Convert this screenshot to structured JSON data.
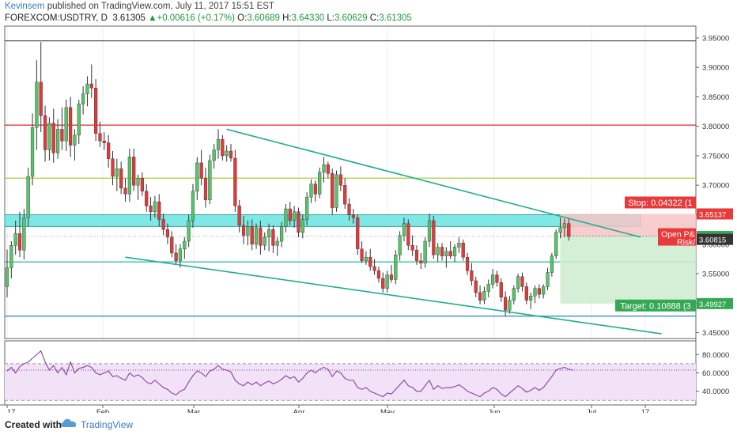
{
  "header": {
    "author": "Kevinsem",
    "published": " published on TradingView.com, July 11, 2017 15:51 EST",
    "symbol": "FOREXCOM:USDTRY, D",
    "last": "3.61305",
    "change": "+0.00616 (+0.17%)",
    "o_label": "O:",
    "o": "3.60689",
    "h_label": "H:",
    "h": "3.64330",
    "l_label": "L:",
    "l": "3.60629",
    "c_label": "C:",
    "c": "3.61305"
  },
  "footer": {
    "created": "Created with",
    "brand": "TradingView"
  },
  "colors": {
    "up": "#56c56a",
    "down": "#e03a3a",
    "wick": "#333333",
    "channel": "#1fae8f",
    "zone_fill": "#7fe7e6",
    "stop_fill": "#f7c4c4",
    "target_fill": "#cdeccf",
    "rsi": "#8b3fa3",
    "rsi_band": "#f1e2f7",
    "red_line": "#e03a3a",
    "green_line": "#a9cf39",
    "teal_line": "#2bbd98",
    "blue_line": "#3d8ec4"
  },
  "chart_data": {
    "type": "candlestick",
    "symbol": "FOREXCOM:USDTRY, D",
    "ylim": [
      3.44,
      3.97
    ],
    "y_ticks": [
      "3.95000",
      "3.90000",
      "3.85000",
      "3.80000",
      "3.75000",
      "3.70000",
      "3.65000",
      "3.60000",
      "3.55000",
      "3.50000",
      "3.45000"
    ],
    "x_tick_labels": [
      "17",
      "Feb",
      "Mar",
      "Apr",
      "May",
      "Jun",
      "Jul",
      "17"
    ],
    "candles": [
      {
        "o": 3.528,
        "h": 3.591,
        "l": 3.51,
        "c": 3.56
      },
      {
        "o": 3.56,
        "h": 3.605,
        "l": 3.542,
        "c": 3.598
      },
      {
        "o": 3.598,
        "h": 3.64,
        "l": 3.582,
        "c": 3.618
      },
      {
        "o": 3.618,
        "h": 3.655,
        "l": 3.578,
        "c": 3.59
      },
      {
        "o": 3.59,
        "h": 3.66,
        "l": 3.574,
        "c": 3.645
      },
      {
        "o": 3.645,
        "h": 3.73,
        "l": 3.63,
        "c": 3.715
      },
      {
        "o": 3.715,
        "h": 3.822,
        "l": 3.7,
        "c": 3.798
      },
      {
        "o": 3.798,
        "h": 3.912,
        "l": 3.76,
        "c": 3.875
      },
      {
        "o": 3.875,
        "h": 3.943,
        "l": 3.79,
        "c": 3.818
      },
      {
        "o": 3.818,
        "h": 3.835,
        "l": 3.74,
        "c": 3.76
      },
      {
        "o": 3.76,
        "h": 3.815,
        "l": 3.742,
        "c": 3.805
      },
      {
        "o": 3.805,
        "h": 3.83,
        "l": 3.738,
        "c": 3.755
      },
      {
        "o": 3.755,
        "h": 3.812,
        "l": 3.745,
        "c": 3.795
      },
      {
        "o": 3.795,
        "h": 3.832,
        "l": 3.76,
        "c": 3.775
      },
      {
        "o": 3.775,
        "h": 3.845,
        "l": 3.758,
        "c": 3.832
      },
      {
        "o": 3.832,
        "h": 3.85,
        "l": 3.748,
        "c": 3.768
      },
      {
        "o": 3.768,
        "h": 3.795,
        "l": 3.742,
        "c": 3.785
      },
      {
        "o": 3.785,
        "h": 3.845,
        "l": 3.77,
        "c": 3.838
      },
      {
        "o": 3.838,
        "h": 3.868,
        "l": 3.82,
        "c": 3.855
      },
      {
        "o": 3.855,
        "h": 3.885,
        "l": 3.834,
        "c": 3.872
      },
      {
        "o": 3.872,
        "h": 3.905,
        "l": 3.848,
        "c": 3.865
      },
      {
        "o": 3.865,
        "h": 3.88,
        "l": 3.775,
        "c": 3.788
      },
      {
        "o": 3.788,
        "h": 3.808,
        "l": 3.765,
        "c": 3.775
      },
      {
        "o": 3.775,
        "h": 3.79,
        "l": 3.76,
        "c": 3.772
      },
      {
        "o": 3.772,
        "h": 3.785,
        "l": 3.73,
        "c": 3.745
      },
      {
        "o": 3.745,
        "h": 3.758,
        "l": 3.7,
        "c": 3.715
      },
      {
        "o": 3.715,
        "h": 3.745,
        "l": 3.69,
        "c": 3.728
      },
      {
        "o": 3.728,
        "h": 3.74,
        "l": 3.685,
        "c": 3.695
      },
      {
        "o": 3.695,
        "h": 3.712,
        "l": 3.672,
        "c": 3.685
      },
      {
        "o": 3.685,
        "h": 3.762,
        "l": 3.672,
        "c": 3.748
      },
      {
        "o": 3.748,
        "h": 3.762,
        "l": 3.69,
        "c": 3.7
      },
      {
        "o": 3.7,
        "h": 3.718,
        "l": 3.675,
        "c": 3.712
      },
      {
        "o": 3.712,
        "h": 3.722,
        "l": 3.682,
        "c": 3.69
      },
      {
        "o": 3.69,
        "h": 3.702,
        "l": 3.655,
        "c": 3.665
      },
      {
        "o": 3.665,
        "h": 3.68,
        "l": 3.64,
        "c": 3.655
      },
      {
        "o": 3.655,
        "h": 3.682,
        "l": 3.645,
        "c": 3.672
      },
      {
        "o": 3.672,
        "h": 3.685,
        "l": 3.63,
        "c": 3.642
      },
      {
        "o": 3.642,
        "h": 3.652,
        "l": 3.615,
        "c": 3.625
      },
      {
        "o": 3.625,
        "h": 3.635,
        "l": 3.6,
        "c": 3.612
      },
      {
        "o": 3.612,
        "h": 3.622,
        "l": 3.578,
        "c": 3.585
      },
      {
        "o": 3.585,
        "h": 3.6,
        "l": 3.565,
        "c": 3.572
      },
      {
        "o": 3.572,
        "h": 3.6,
        "l": 3.56,
        "c": 3.592
      },
      {
        "o": 3.592,
        "h": 3.612,
        "l": 3.575,
        "c": 3.605
      },
      {
        "o": 3.605,
        "h": 3.65,
        "l": 3.595,
        "c": 3.64
      },
      {
        "o": 3.64,
        "h": 3.702,
        "l": 3.628,
        "c": 3.69
      },
      {
        "o": 3.69,
        "h": 3.748,
        "l": 3.675,
        "c": 3.738
      },
      {
        "o": 3.738,
        "h": 3.76,
        "l": 3.7,
        "c": 3.712
      },
      {
        "o": 3.712,
        "h": 3.73,
        "l": 3.662,
        "c": 3.675
      },
      {
        "o": 3.675,
        "h": 3.752,
        "l": 3.668,
        "c": 3.742
      },
      {
        "o": 3.742,
        "h": 3.77,
        "l": 3.728,
        "c": 3.76
      },
      {
        "o": 3.76,
        "h": 3.795,
        "l": 3.745,
        "c": 3.778
      },
      {
        "o": 3.778,
        "h": 3.785,
        "l": 3.742,
        "c": 3.75
      },
      {
        "o": 3.75,
        "h": 3.768,
        "l": 3.74,
        "c": 3.758
      },
      {
        "o": 3.758,
        "h": 3.77,
        "l": 3.74,
        "c": 3.746
      },
      {
        "o": 3.746,
        "h": 3.76,
        "l": 3.655,
        "c": 3.665
      },
      {
        "o": 3.665,
        "h": 3.675,
        "l": 3.62,
        "c": 3.632
      },
      {
        "o": 3.632,
        "h": 3.648,
        "l": 3.6,
        "c": 3.615
      },
      {
        "o": 3.615,
        "h": 3.64,
        "l": 3.598,
        "c": 3.63
      },
      {
        "o": 3.63,
        "h": 3.642,
        "l": 3.59,
        "c": 3.6
      },
      {
        "o": 3.6,
        "h": 3.635,
        "l": 3.592,
        "c": 3.628
      },
      {
        "o": 3.628,
        "h": 3.64,
        "l": 3.582,
        "c": 3.598
      },
      {
        "o": 3.598,
        "h": 3.62,
        "l": 3.59,
        "c": 3.612
      },
      {
        "o": 3.612,
        "h": 3.635,
        "l": 3.588,
        "c": 3.625
      },
      {
        "o": 3.625,
        "h": 3.632,
        "l": 3.585,
        "c": 3.598
      },
      {
        "o": 3.598,
        "h": 3.612,
        "l": 3.58,
        "c": 3.605
      },
      {
        "o": 3.605,
        "h": 3.638,
        "l": 3.595,
        "c": 3.63
      },
      {
        "o": 3.63,
        "h": 3.668,
        "l": 3.62,
        "c": 3.66
      },
      {
        "o": 3.66,
        "h": 3.672,
        "l": 3.632,
        "c": 3.64
      },
      {
        "o": 3.64,
        "h": 3.665,
        "l": 3.628,
        "c": 3.655
      },
      {
        "o": 3.655,
        "h": 3.662,
        "l": 3.612,
        "c": 3.62
      },
      {
        "o": 3.62,
        "h": 3.65,
        "l": 3.61,
        "c": 3.642
      },
      {
        "o": 3.642,
        "h": 3.688,
        "l": 3.632,
        "c": 3.68
      },
      {
        "o": 3.68,
        "h": 3.71,
        "l": 3.67,
        "c": 3.702
      },
      {
        "o": 3.702,
        "h": 3.708,
        "l": 3.672,
        "c": 3.685
      },
      {
        "o": 3.685,
        "h": 3.73,
        "l": 3.678,
        "c": 3.722
      },
      {
        "o": 3.722,
        "h": 3.748,
        "l": 3.705,
        "c": 3.735
      },
      {
        "o": 3.735,
        "h": 3.74,
        "l": 3.712,
        "c": 3.72
      },
      {
        "o": 3.72,
        "h": 3.728,
        "l": 3.65,
        "c": 3.662
      },
      {
        "o": 3.662,
        "h": 3.725,
        "l": 3.655,
        "c": 3.718
      },
      {
        "o": 3.718,
        "h": 3.732,
        "l": 3.69,
        "c": 3.7
      },
      {
        "o": 3.7,
        "h": 3.712,
        "l": 3.66,
        "c": 3.668
      },
      {
        "o": 3.668,
        "h": 3.678,
        "l": 3.64,
        "c": 3.65
      },
      {
        "o": 3.65,
        "h": 3.66,
        "l": 3.635,
        "c": 3.645
      },
      {
        "o": 3.645,
        "h": 3.65,
        "l": 3.582,
        "c": 3.592
      },
      {
        "o": 3.592,
        "h": 3.605,
        "l": 3.568,
        "c": 3.572
      },
      {
        "o": 3.572,
        "h": 3.588,
        "l": 3.565,
        "c": 3.578
      },
      {
        "o": 3.578,
        "h": 3.592,
        "l": 3.555,
        "c": 3.562
      },
      {
        "o": 3.562,
        "h": 3.575,
        "l": 3.548,
        "c": 3.555
      },
      {
        "o": 3.555,
        "h": 3.562,
        "l": 3.535,
        "c": 3.542
      },
      {
        "o": 3.542,
        "h": 3.552,
        "l": 3.518,
        "c": 3.525
      },
      {
        "o": 3.525,
        "h": 3.555,
        "l": 3.518,
        "c": 3.548
      },
      {
        "o": 3.548,
        "h": 3.565,
        "l": 3.535,
        "c": 3.54
      },
      {
        "o": 3.54,
        "h": 3.59,
        "l": 3.532,
        "c": 3.582
      },
      {
        "o": 3.582,
        "h": 3.622,
        "l": 3.572,
        "c": 3.615
      },
      {
        "o": 3.615,
        "h": 3.645,
        "l": 3.605,
        "c": 3.635
      },
      {
        "o": 3.635,
        "h": 3.642,
        "l": 3.59,
        "c": 3.598
      },
      {
        "o": 3.598,
        "h": 3.615,
        "l": 3.58,
        "c": 3.59
      },
      {
        "o": 3.59,
        "h": 3.598,
        "l": 3.565,
        "c": 3.572
      },
      {
        "o": 3.572,
        "h": 3.585,
        "l": 3.558,
        "c": 3.568
      },
      {
        "o": 3.568,
        "h": 3.612,
        "l": 3.56,
        "c": 3.605
      },
      {
        "o": 3.605,
        "h": 3.652,
        "l": 3.595,
        "c": 3.64
      },
      {
        "o": 3.64,
        "h": 3.648,
        "l": 3.575,
        "c": 3.582
      },
      {
        "o": 3.582,
        "h": 3.602,
        "l": 3.57,
        "c": 3.595
      },
      {
        "o": 3.595,
        "h": 3.602,
        "l": 3.572,
        "c": 3.58
      },
      {
        "o": 3.58,
        "h": 3.595,
        "l": 3.56,
        "c": 3.588
      },
      {
        "o": 3.588,
        "h": 3.605,
        "l": 3.575,
        "c": 3.58
      },
      {
        "o": 3.58,
        "h": 3.6,
        "l": 3.57,
        "c": 3.595
      },
      {
        "o": 3.595,
        "h": 3.612,
        "l": 3.585,
        "c": 3.602
      },
      {
        "o": 3.602,
        "h": 3.608,
        "l": 3.572,
        "c": 3.578
      },
      {
        "o": 3.578,
        "h": 3.585,
        "l": 3.548,
        "c": 3.555
      },
      {
        "o": 3.555,
        "h": 3.568,
        "l": 3.53,
        "c": 3.538
      },
      {
        "o": 3.538,
        "h": 3.545,
        "l": 3.51,
        "c": 3.518
      },
      {
        "o": 3.518,
        "h": 3.53,
        "l": 3.498,
        "c": 3.505
      },
      {
        "o": 3.505,
        "h": 3.528,
        "l": 3.498,
        "c": 3.52
      },
      {
        "o": 3.52,
        "h": 3.54,
        "l": 3.51,
        "c": 3.532
      },
      {
        "o": 3.532,
        "h": 3.558,
        "l": 3.525,
        "c": 3.548
      },
      {
        "o": 3.548,
        "h": 3.555,
        "l": 3.528,
        "c": 3.535
      },
      {
        "o": 3.535,
        "h": 3.542,
        "l": 3.502,
        "c": 3.51
      },
      {
        "o": 3.51,
        "h": 3.52,
        "l": 3.478,
        "c": 3.488
      },
      {
        "o": 3.488,
        "h": 3.512,
        "l": 3.482,
        "c": 3.505
      },
      {
        "o": 3.505,
        "h": 3.53,
        "l": 3.498,
        "c": 3.525
      },
      {
        "o": 3.525,
        "h": 3.55,
        "l": 3.518,
        "c": 3.545
      },
      {
        "o": 3.545,
        "h": 3.552,
        "l": 3.52,
        "c": 3.528
      },
      {
        "o": 3.528,
        "h": 3.535,
        "l": 3.498,
        "c": 3.505
      },
      {
        "o": 3.505,
        "h": 3.518,
        "l": 3.49,
        "c": 3.512
      },
      {
        "o": 3.512,
        "h": 3.53,
        "l": 3.5,
        "c": 3.525
      },
      {
        "o": 3.525,
        "h": 3.532,
        "l": 3.508,
        "c": 3.515
      },
      {
        "o": 3.515,
        "h": 3.532,
        "l": 3.508,
        "c": 3.528
      },
      {
        "o": 3.528,
        "h": 3.56,
        "l": 3.522,
        "c": 3.552
      },
      {
        "o": 3.552,
        "h": 3.585,
        "l": 3.545,
        "c": 3.58
      },
      {
        "o": 3.58,
        "h": 3.625,
        "l": 3.575,
        "c": 3.62
      },
      {
        "o": 3.62,
        "h": 3.645,
        "l": 3.61,
        "c": 3.628
      },
      {
        "o": 3.628,
        "h": 3.643,
        "l": 3.612,
        "c": 3.635
      },
      {
        "o": 3.635,
        "h": 3.643,
        "l": 3.606,
        "c": 3.613
      }
    ],
    "horizontal_lines": [
      {
        "price": 3.945,
        "role": "top"
      },
      {
        "price": 3.802,
        "role": "resistance"
      },
      {
        "price": 3.712,
        "role": "level"
      },
      {
        "price": 3.57,
        "role": "support"
      },
      {
        "price": 3.478,
        "role": "low"
      }
    ],
    "zone": {
      "low": 3.63,
      "high": 3.65
    },
    "channel": {
      "upper": [
        {
          "bar": 52,
          "price": 3.795
        },
        {
          "bar": 150,
          "price": 3.612
        }
      ],
      "lower": [
        {
          "bar": 28,
          "price": 3.578
        },
        {
          "bar": 155,
          "price": 3.448
        }
      ]
    },
    "position": {
      "entry": 3.6137,
      "stop": 3.6514,
      "target": 3.4993,
      "stop_label": "Stop: 0.04322 (1",
      "target_label": "Target: 0.10888 (3",
      "open_label": "Open P&",
      "risk_label": "Risk/"
    },
    "price_tags": [
      {
        "value": "3.65137",
        "style": "red"
      },
      {
        "value": "3.61305",
        "style": "green"
      },
      {
        "value": "3.60815",
        "style": "dark"
      },
      {
        "value": "3.49927",
        "style": "green"
      }
    ],
    "rsi": {
      "ylim": [
        25,
        95
      ],
      "y_ticks": [
        "80.0000",
        "60.0000",
        "40.0000"
      ],
      "bands": [
        70,
        30
      ],
      "values": [
        62,
        66,
        60,
        67,
        70,
        72,
        76,
        80,
        84,
        72,
        63,
        68,
        60,
        66,
        58,
        72,
        60,
        65,
        66,
        68,
        66,
        60,
        58,
        60,
        62,
        56,
        57,
        54,
        52,
        60,
        56,
        58,
        55,
        50,
        48,
        52,
        48,
        44,
        42,
        38,
        36,
        40,
        42,
        50,
        57,
        62,
        60,
        56,
        62,
        64,
        68,
        64,
        63,
        61,
        52,
        48,
        46,
        50,
        47,
        50,
        46,
        49,
        51,
        48,
        50,
        53,
        57,
        54,
        56,
        50,
        54,
        60,
        63,
        60,
        64,
        66,
        64,
        56,
        62,
        60,
        54,
        52,
        52,
        44,
        42,
        44,
        40,
        38,
        36,
        34,
        38,
        37,
        42,
        47,
        52,
        46,
        44,
        40,
        40,
        46,
        52,
        42,
        46,
        43,
        44,
        44,
        45,
        47,
        44,
        40,
        38,
        36,
        34,
        38,
        40,
        44,
        42,
        37,
        34,
        38,
        42,
        46,
        43,
        39,
        41,
        44,
        41,
        44,
        50,
        56,
        63,
        65,
        66,
        64,
        63
      ]
    }
  }
}
